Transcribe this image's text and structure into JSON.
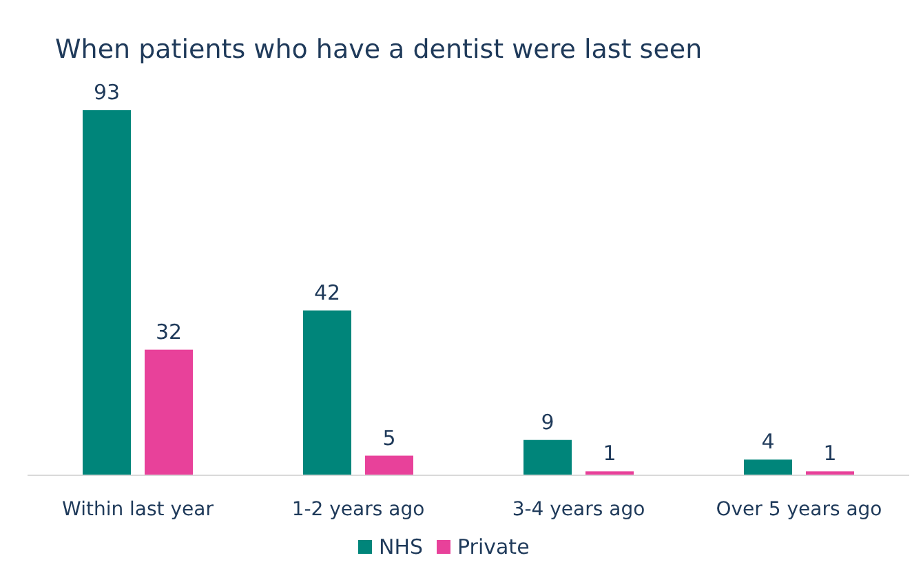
{
  "chart_data": {
    "type": "bar",
    "title": "When patients who have a dentist were last seen",
    "categories": [
      "Within last year",
      "1-2 years ago",
      "3-4 years ago",
      "Over 5 years ago"
    ],
    "series": [
      {
        "name": "NHS",
        "color": "#00857a",
        "values": [
          93,
          42,
          9,
          4
        ]
      },
      {
        "name": "Private",
        "color": "#e8419a",
        "values": [
          32,
          5,
          1,
          1
        ]
      }
    ],
    "data_labels": true,
    "legend": "bottom"
  }
}
